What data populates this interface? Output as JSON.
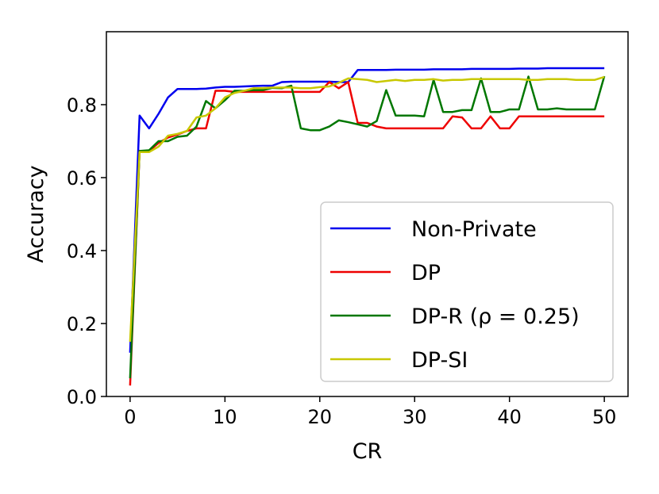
{
  "chart_data": {
    "type": "line",
    "xlabel": "CR",
    "ylabel": "Accuracy",
    "xlim": [
      -2.5,
      52.5
    ],
    "ylim": [
      0.0,
      1.0
    ],
    "xticks": [
      0,
      10,
      20,
      30,
      40,
      50
    ],
    "yticks": [
      0.0,
      0.2,
      0.4,
      0.6,
      0.8
    ],
    "xtick_labels": [
      "0",
      "10",
      "20",
      "30",
      "40",
      "50"
    ],
    "ytick_labels": [
      "0.0",
      "0.2",
      "0.4",
      "0.6",
      "0.8"
    ],
    "grid": false,
    "legend_position": "lower-right",
    "x": [
      0,
      1,
      2,
      3,
      4,
      5,
      6,
      7,
      8,
      9,
      10,
      11,
      12,
      13,
      14,
      15,
      16,
      17,
      18,
      19,
      20,
      21,
      22,
      23,
      24,
      25,
      26,
      27,
      28,
      29,
      30,
      31,
      32,
      33,
      34,
      35,
      36,
      37,
      38,
      39,
      40,
      41,
      42,
      43,
      44,
      45,
      46,
      47,
      48,
      49,
      50
    ],
    "series": [
      {
        "name": "Non-Private",
        "color": "#0000ee",
        "values": [
          0.12,
          0.77,
          0.735,
          0.775,
          0.82,
          0.843,
          0.843,
          0.843,
          0.844,
          0.847,
          0.849,
          0.849,
          0.85,
          0.851,
          0.852,
          0.852,
          0.862,
          0.863,
          0.863,
          0.863,
          0.863,
          0.863,
          0.862,
          0.862,
          0.895,
          0.895,
          0.895,
          0.895,
          0.896,
          0.896,
          0.896,
          0.896,
          0.897,
          0.897,
          0.897,
          0.897,
          0.898,
          0.898,
          0.898,
          0.898,
          0.898,
          0.899,
          0.899,
          0.899,
          0.9,
          0.9,
          0.9,
          0.9,
          0.9,
          0.9,
          0.9
        ]
      },
      {
        "name": "DP",
        "color": "#ee0000",
        "values": [
          0.03,
          0.673,
          0.673,
          0.695,
          0.71,
          0.718,
          0.728,
          0.735,
          0.735,
          0.838,
          0.838,
          0.835,
          0.835,
          0.835,
          0.835,
          0.835,
          0.835,
          0.835,
          0.835,
          0.835,
          0.835,
          0.862,
          0.845,
          0.862,
          0.75,
          0.75,
          0.74,
          0.735,
          0.735,
          0.735,
          0.735,
          0.735,
          0.735,
          0.735,
          0.768,
          0.765,
          0.735,
          0.735,
          0.768,
          0.735,
          0.735,
          0.768,
          0.768,
          0.768,
          0.768,
          0.768,
          0.768,
          0.768,
          0.768,
          0.768,
          0.768
        ]
      },
      {
        "name": "DP-R (ρ = 0.25)",
        "color": "#007700",
        "values": [
          0.05,
          0.673,
          0.675,
          0.7,
          0.7,
          0.712,
          0.715,
          0.74,
          0.81,
          0.79,
          0.812,
          0.838,
          0.838,
          0.84,
          0.84,
          0.846,
          0.845,
          0.852,
          0.735,
          0.73,
          0.73,
          0.74,
          0.757,
          0.752,
          0.746,
          0.74,
          0.755,
          0.84,
          0.77,
          0.77,
          0.77,
          0.768,
          0.868,
          0.78,
          0.78,
          0.785,
          0.785,
          0.872,
          0.78,
          0.78,
          0.787,
          0.787,
          0.877,
          0.787,
          0.787,
          0.79,
          0.787,
          0.787,
          0.787,
          0.787,
          0.878
        ]
      },
      {
        "name": "DP-SI",
        "color": "#c8c800",
        "values": [
          0.15,
          0.67,
          0.67,
          0.685,
          0.715,
          0.72,
          0.728,
          0.765,
          0.77,
          0.79,
          0.82,
          0.832,
          0.838,
          0.845,
          0.845,
          0.847,
          0.847,
          0.847,
          0.845,
          0.845,
          0.848,
          0.85,
          0.86,
          0.872,
          0.87,
          0.868,
          0.862,
          0.865,
          0.868,
          0.865,
          0.868,
          0.868,
          0.87,
          0.866,
          0.868,
          0.868,
          0.87,
          0.87,
          0.87,
          0.87,
          0.87,
          0.87,
          0.868,
          0.868,
          0.87,
          0.87,
          0.87,
          0.868,
          0.868,
          0.868,
          0.876
        ]
      }
    ]
  }
}
